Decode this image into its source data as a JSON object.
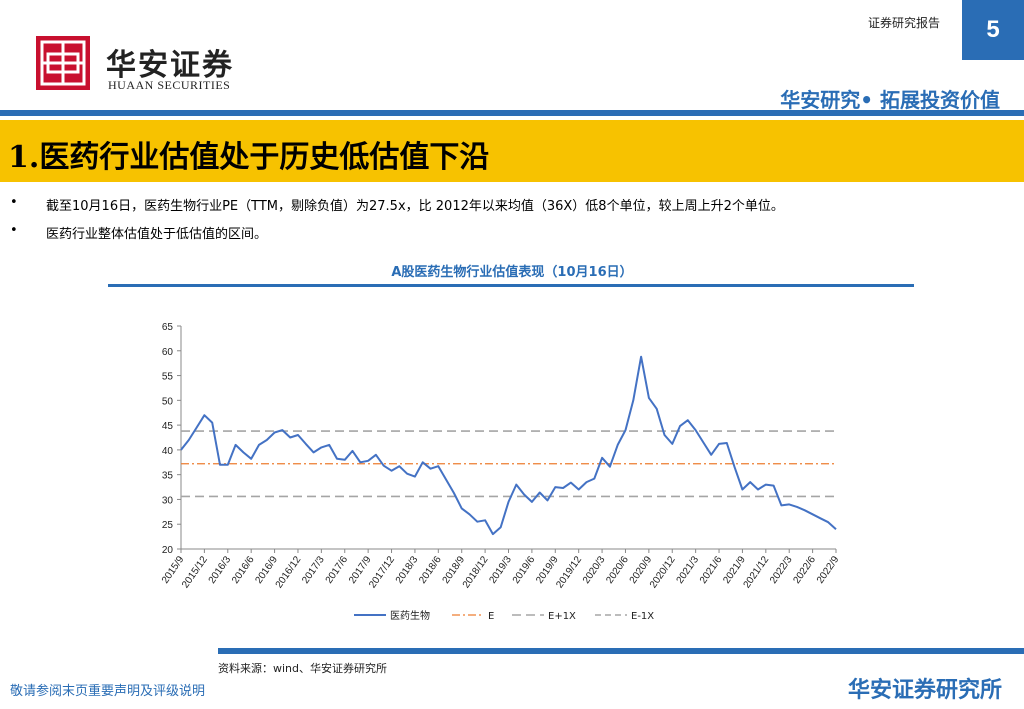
{
  "header": {
    "report_label": "证券研究报告",
    "page_number": "5",
    "logo_cn": "华安证券",
    "logo_en": "HUAAN SECURITIES",
    "slogan": "华安研究• 拓展投资价值"
  },
  "title": "1.医药行业估值处于历史低估值下沿",
  "bullets": [
    {
      "mark": "•",
      "text": "截至10月16日，医药生物行业PE（TTM，剔除负值）为27.5x，比 2012年以来均值（36X）低8个单位，较上周上升2个单位。"
    },
    {
      "mark": "•",
      "text": "医药行业整体估值处于低估值的区间。"
    }
  ],
  "chart_title": "A股医药生物行业估值表现（10月16日）",
  "source": "资料来源：wind、华安证券研究所",
  "footer": {
    "left": "敬请参阅末页重要声明及评级说明",
    "right": "华安证券研究所"
  },
  "colors": {
    "brand_blue": "#2a6db5",
    "title_yellow": "#f7c200",
    "logo_red": "#c8102e",
    "series": "#4472c4",
    "e_line": "#ed7d31",
    "band_line": "#a5a5a5"
  },
  "chart_data": {
    "type": "line",
    "ylim": [
      20,
      65
    ],
    "yticks": [
      20,
      25,
      30,
      35,
      40,
      45,
      50,
      55,
      60,
      65
    ],
    "xlim": [
      0,
      84
    ],
    "xticks": [
      {
        "x": 0,
        "label": "2015/9"
      },
      {
        "x": 3,
        "label": "2015/12"
      },
      {
        "x": 6,
        "label": "2016/3"
      },
      {
        "x": 9,
        "label": "2016/6"
      },
      {
        "x": 12,
        "label": "2016/9"
      },
      {
        "x": 15,
        "label": "2016/12"
      },
      {
        "x": 18,
        "label": "2017/3"
      },
      {
        "x": 21,
        "label": "2017/6"
      },
      {
        "x": 24,
        "label": "2017/9"
      },
      {
        "x": 27,
        "label": "2017/12"
      },
      {
        "x": 30,
        "label": "2018/3"
      },
      {
        "x": 33,
        "label": "2018/6"
      },
      {
        "x": 36,
        "label": "2018/9"
      },
      {
        "x": 39,
        "label": "2018/12"
      },
      {
        "x": 42,
        "label": "2019/3"
      },
      {
        "x": 45,
        "label": "2019/6"
      },
      {
        "x": 48,
        "label": "2019/9"
      },
      {
        "x": 51,
        "label": "2019/12"
      },
      {
        "x": 54,
        "label": "2020/3"
      },
      {
        "x": 57,
        "label": "2020/6"
      },
      {
        "x": 60,
        "label": "2020/9"
      },
      {
        "x": 63,
        "label": "2020/12"
      },
      {
        "x": 66,
        "label": "2021/3"
      },
      {
        "x": 69,
        "label": "2021/6"
      },
      {
        "x": 72,
        "label": "2021/9"
      },
      {
        "x": 75,
        "label": "2021/12"
      },
      {
        "x": 78,
        "label": "2022/3"
      },
      {
        "x": 81,
        "label": "2022/6"
      },
      {
        "x": 84,
        "label": "2022/9"
      }
    ],
    "series": [
      {
        "name": "医药生物",
        "points": [
          [
            0,
            40
          ],
          [
            1,
            42
          ],
          [
            2,
            44.5
          ],
          [
            3,
            47
          ],
          [
            4,
            45.5
          ],
          [
            5,
            37
          ],
          [
            6,
            37
          ],
          [
            7,
            41
          ],
          [
            8,
            39.5
          ],
          [
            9,
            38.2
          ],
          [
            10,
            41
          ],
          [
            11,
            42
          ],
          [
            12,
            43.5
          ],
          [
            13,
            44
          ],
          [
            14,
            42.5
          ],
          [
            15,
            43
          ],
          [
            16,
            41.2
          ],
          [
            17,
            39.5
          ],
          [
            18,
            40.5
          ],
          [
            19,
            41
          ],
          [
            20,
            38.2
          ],
          [
            21,
            38
          ],
          [
            22,
            39.8
          ],
          [
            23,
            37.5
          ],
          [
            24,
            37.8
          ],
          [
            25,
            39
          ],
          [
            26,
            36.8
          ],
          [
            27,
            35.8
          ],
          [
            28,
            36.7
          ],
          [
            29,
            35.2
          ],
          [
            30,
            34.6
          ],
          [
            31,
            37.5
          ],
          [
            32,
            36.2
          ],
          [
            33,
            36.7
          ],
          [
            34,
            34
          ],
          [
            35,
            31.3
          ],
          [
            36,
            28.2
          ],
          [
            37,
            27
          ],
          [
            38,
            25.5
          ],
          [
            39,
            25.8
          ],
          [
            40,
            23
          ],
          [
            41,
            24.4
          ],
          [
            42,
            29.5
          ],
          [
            43,
            33
          ],
          [
            44,
            31
          ],
          [
            45,
            29.5
          ],
          [
            46,
            31.4
          ],
          [
            47,
            29.8
          ],
          [
            48,
            32.5
          ],
          [
            49,
            32.3
          ],
          [
            50,
            33.4
          ],
          [
            51,
            32
          ],
          [
            52,
            33.5
          ],
          [
            53,
            34.2
          ],
          [
            54,
            38.4
          ],
          [
            55,
            36.6
          ],
          [
            56,
            41
          ],
          [
            57,
            44
          ],
          [
            58,
            50
          ],
          [
            59,
            58.8
          ],
          [
            60,
            50.5
          ],
          [
            61,
            48.3
          ],
          [
            62,
            43
          ],
          [
            63,
            41.2
          ],
          [
            64,
            44.8
          ],
          [
            65,
            46
          ],
          [
            66,
            44
          ],
          [
            67,
            41.5
          ],
          [
            68,
            39
          ],
          [
            69,
            41.2
          ],
          [
            70,
            41.4
          ],
          [
            71,
            36.5
          ],
          [
            72,
            32
          ],
          [
            73,
            33.5
          ],
          [
            74,
            32
          ],
          [
            75,
            33
          ],
          [
            76,
            32.8
          ],
          [
            77,
            28.8
          ],
          [
            78,
            29
          ],
          [
            79,
            28.5
          ],
          [
            80,
            27.8
          ],
          [
            81,
            27
          ],
          [
            82,
            26.2
          ],
          [
            83,
            25.4
          ],
          [
            84,
            24
          ]
        ]
      }
    ],
    "reference_lines": [
      {
        "name": "E",
        "value": 37.2,
        "style": "dash-dot"
      },
      {
        "name": "E+1X",
        "value": 43.8,
        "style": "dash"
      },
      {
        "name": "E-1X",
        "value": 30.6,
        "style": "dash"
      }
    ]
  }
}
